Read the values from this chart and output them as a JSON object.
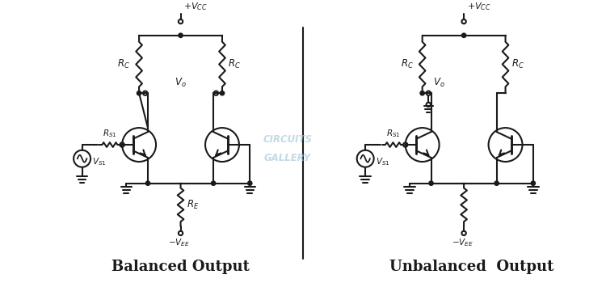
{
  "title_left": "Balanced Output",
  "title_right": "Unbalanced  Output",
  "watermark_line1": "CIRCUITS",
  "watermark_line2": "GALLERY",
  "bg_color": "#ffffff",
  "line_color": "#1a1a1a",
  "watermark_color": "#a0c8d8",
  "title_fontsize": 13,
  "label_fontsize": 8.5
}
